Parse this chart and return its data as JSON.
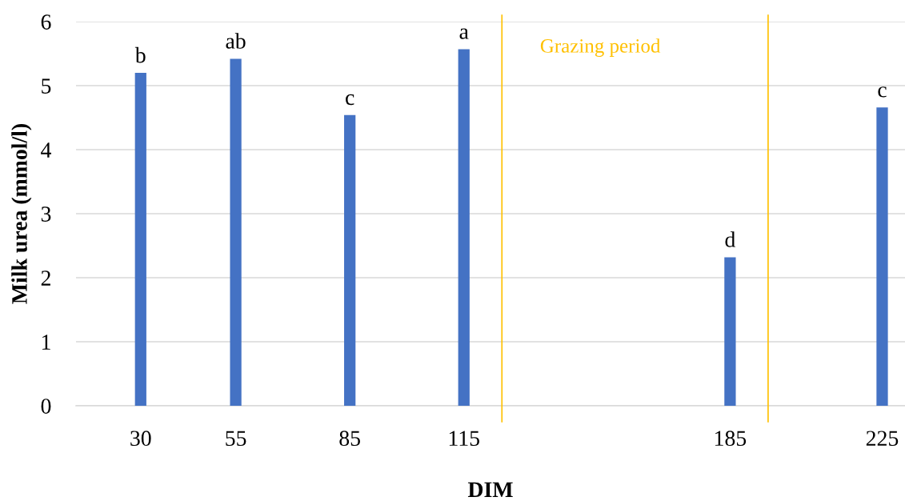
{
  "chart_data": {
    "type": "bar",
    "xlabel": "DIM",
    "ylabel": "Milk urea (mmol/l)",
    "x": [
      30,
      55,
      85,
      115,
      185,
      225
    ],
    "values": [
      5.2,
      5.42,
      4.54,
      5.57,
      2.32,
      4.66
    ],
    "color": "#4472c4",
    "xlim": [
      13,
      231
    ],
    "xticks": [
      30,
      55,
      85,
      115,
      185,
      225
    ],
    "ylim": [
      0,
      6
    ],
    "yticks": [
      0,
      1,
      2,
      3,
      4,
      5,
      6
    ],
    "grid": "y",
    "ref_lines": [
      {
        "axis": "x",
        "value": 125,
        "label": "Grazing period",
        "color": "#ffc000"
      },
      {
        "axis": "x",
        "value": 195,
        "color": "#ffc000"
      }
    ],
    "annotations": [
      {
        "text": "b",
        "x": 30,
        "y": 5.2
      },
      {
        "text": "ab",
        "x": 55,
        "y": 5.42
      },
      {
        "text": "c",
        "x": 85,
        "y": 4.54
      },
      {
        "text": "a",
        "x": 115,
        "y": 5.57
      },
      {
        "text": "d",
        "x": 185,
        "y": 2.32
      },
      {
        "text": "c",
        "x": 225,
        "y": 4.66
      }
    ]
  }
}
